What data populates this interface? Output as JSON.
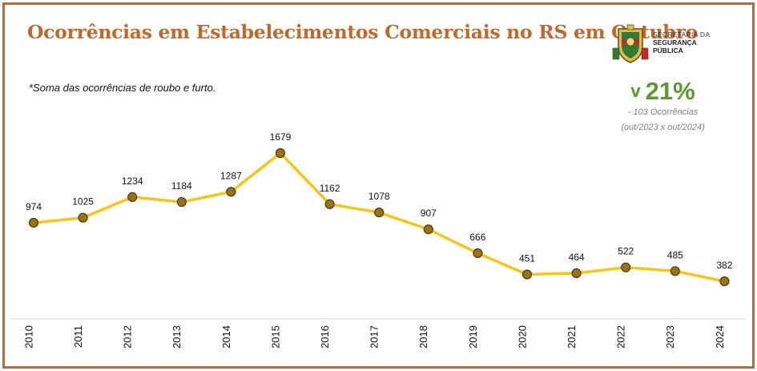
{
  "header": {
    "title": "Ocorrências em Estabelecimentos Comerciais no RS em Outubro",
    "footnote": "*Soma das ocorrências de roubo e furto.",
    "agency_line1": "SECRETARIA DA",
    "agency_line2": "SEGURANÇA",
    "agency_line3": "PÚBLICA"
  },
  "kpi": {
    "arrow": "v",
    "percent": "21%",
    "delta": "- 103 Ocorrências",
    "period": "(out/2023 x out/2024)"
  },
  "colors": {
    "frame": "#c0692a",
    "title": "#c0692a",
    "line": "#f5c518",
    "marker_fill": "#9a7414",
    "marker_stroke": "#4a3a10",
    "kpi": "#5a9a2d"
  },
  "chart_data": {
    "type": "line",
    "categories": [
      "2010",
      "2011",
      "2012",
      "2013",
      "2014",
      "2015",
      "2016",
      "2017",
      "2018",
      "2019",
      "2020",
      "2021",
      "2022",
      "2023",
      "2024"
    ],
    "series": [
      {
        "values": [
          974,
          1025,
          1234,
          1184,
          1287,
          1679,
          1162,
          1078,
          907,
          666,
          451,
          464,
          522,
          485,
          382
        ]
      }
    ],
    "data_labels": true,
    "grid": false,
    "legend": "none"
  }
}
